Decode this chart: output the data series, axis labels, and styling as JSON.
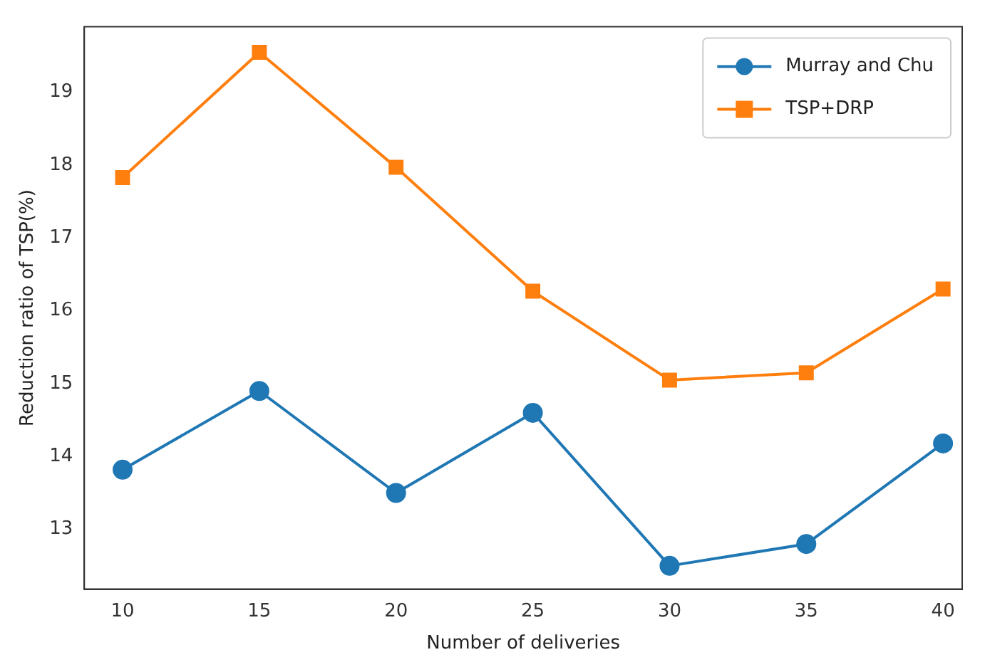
{
  "chart_data": {
    "type": "line",
    "xlabel": "Number of deliveries",
    "ylabel": "Reduction ratio of TSP(%)",
    "x": [
      10,
      15,
      20,
      25,
      30,
      35,
      40
    ],
    "series": [
      {
        "name": "Murray and Chu",
        "color": "#1f77b4",
        "marker": "circle",
        "values": [
          13.82,
          14.9,
          13.5,
          14.6,
          12.5,
          12.8,
          14.18
        ]
      },
      {
        "name": "TSP+DRP",
        "color": "#ff7f0e",
        "marker": "square",
        "values": [
          17.83,
          19.55,
          17.97,
          16.27,
          15.05,
          15.15,
          16.3
        ]
      }
    ],
    "xlim": [
      8.6,
      40.7
    ],
    "ylim": [
      12.18,
      19.9
    ],
    "xticks": [
      10,
      15,
      20,
      25,
      30,
      35,
      40
    ],
    "yticks": [
      13,
      14,
      15,
      16,
      17,
      18,
      19
    ],
    "legend": "top right",
    "grid": false,
    "line_style": "solid"
  }
}
